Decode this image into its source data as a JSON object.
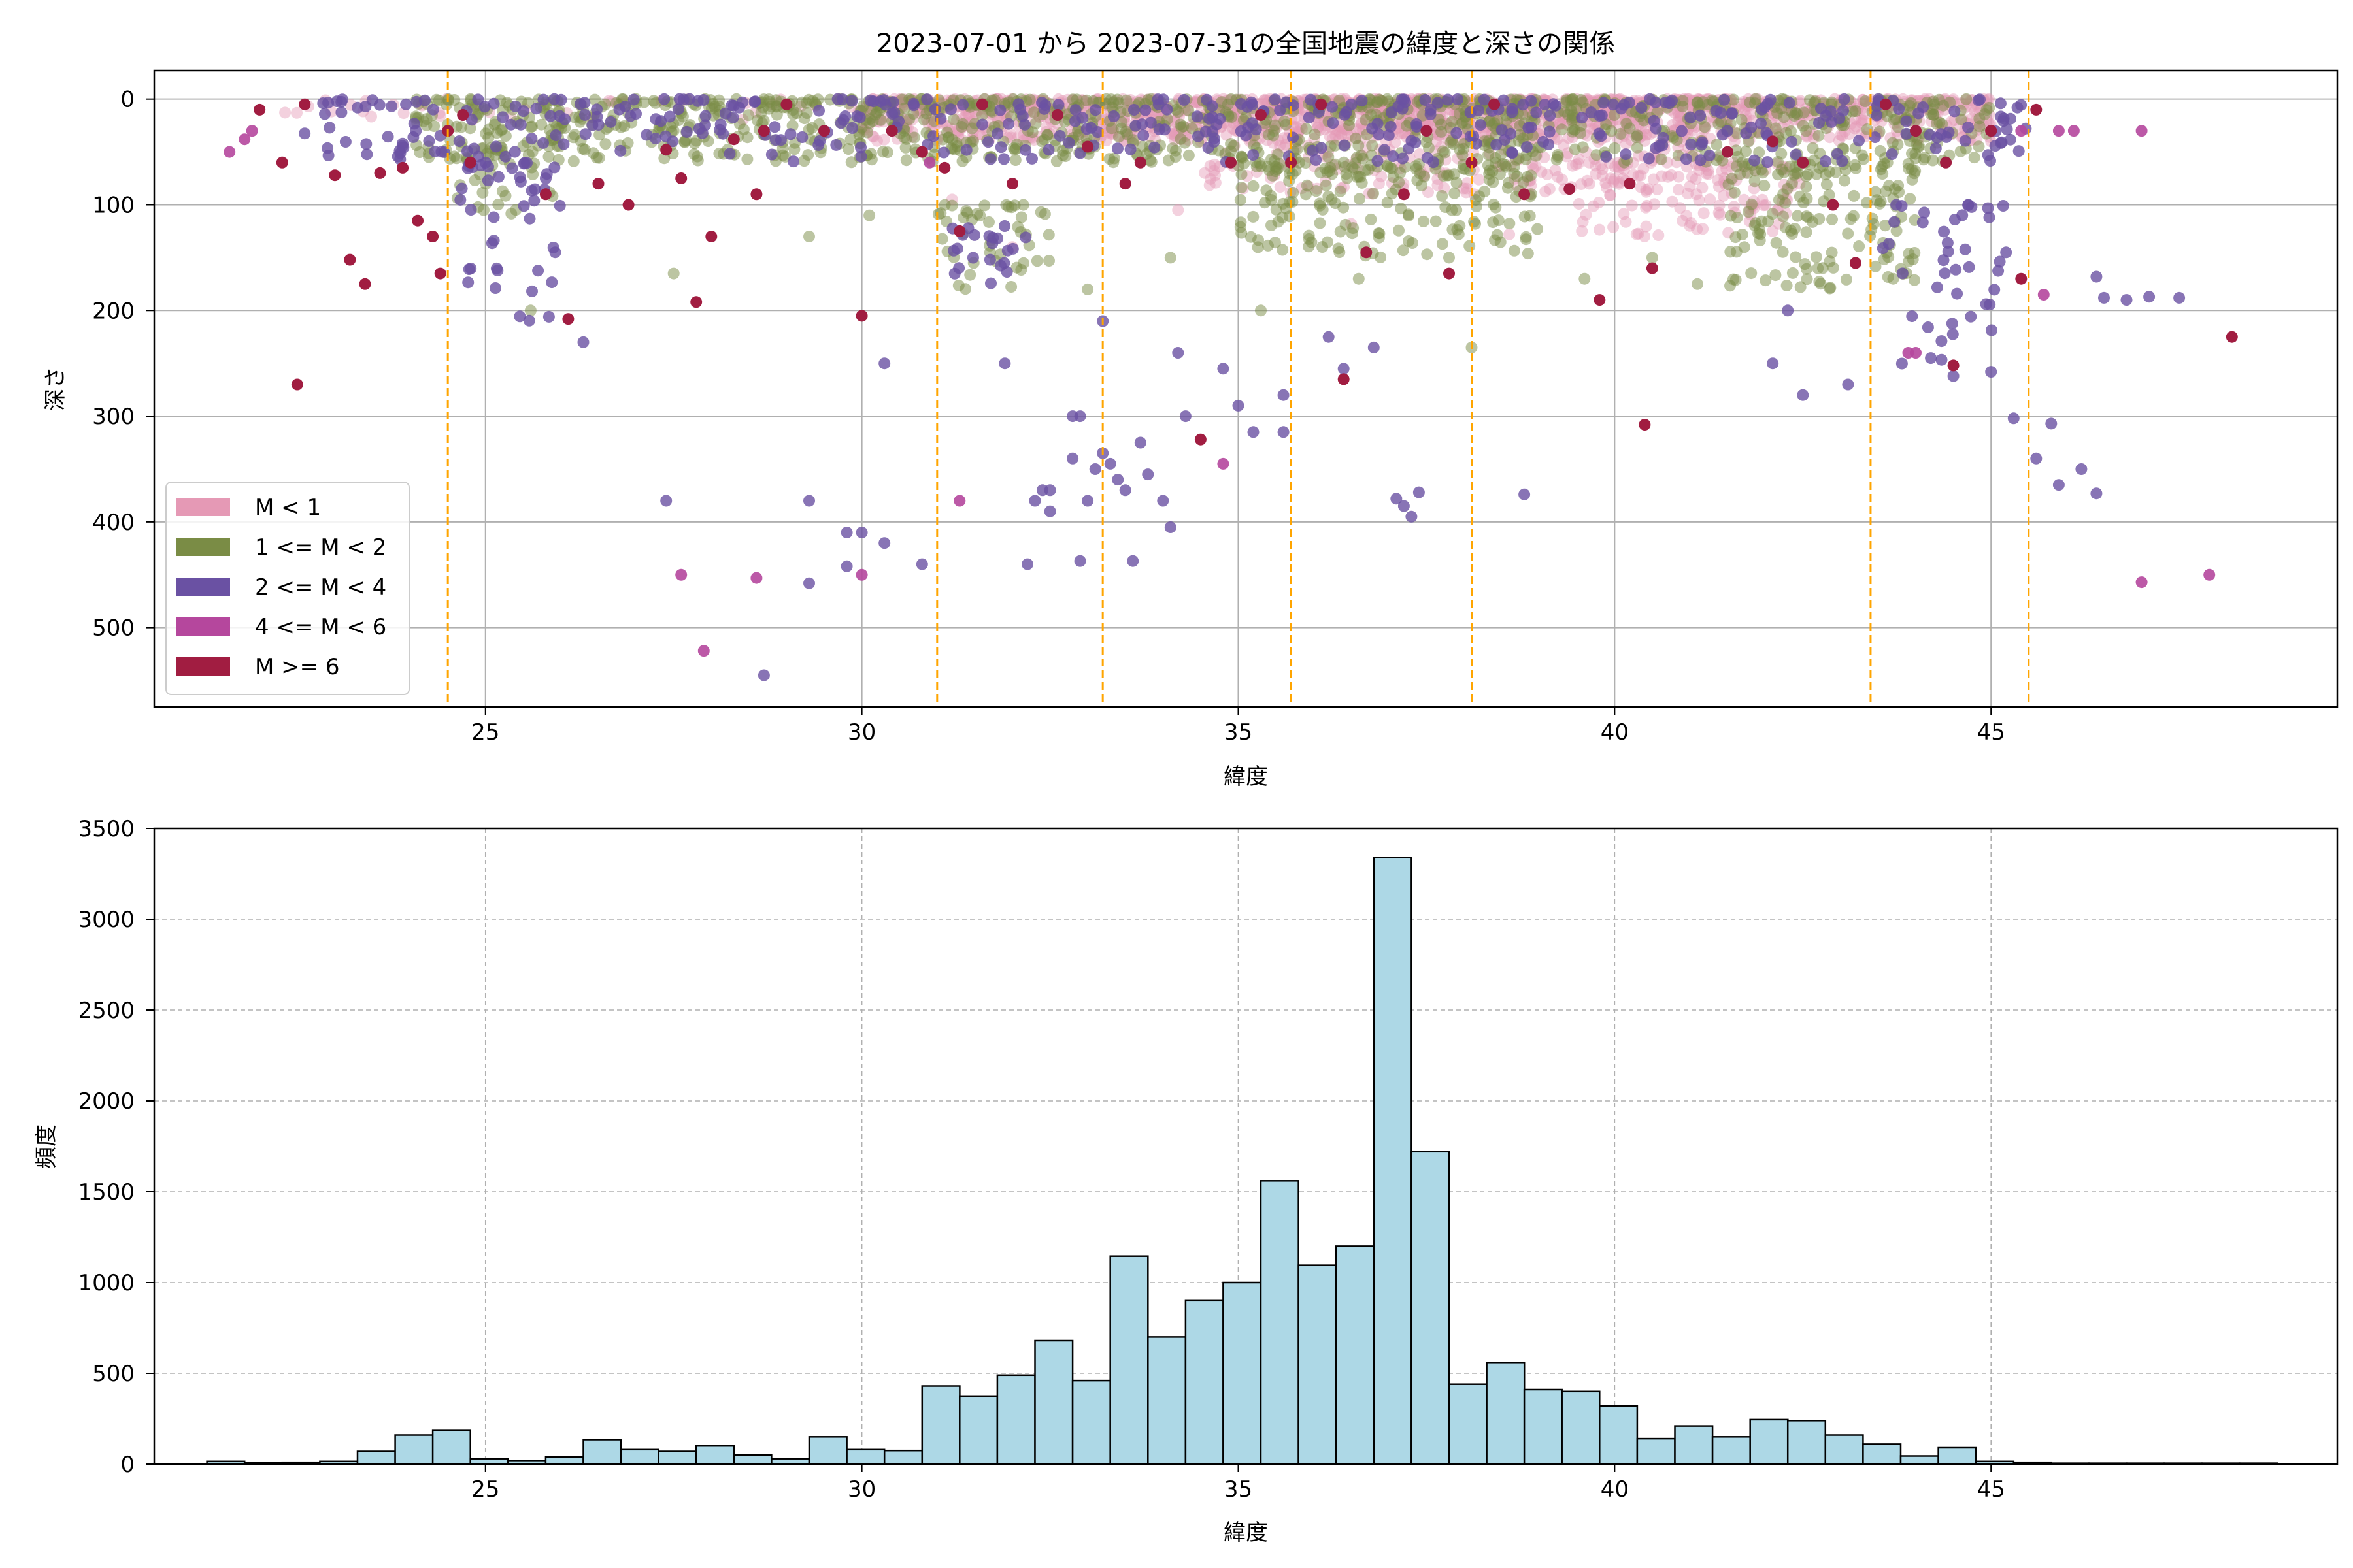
{
  "chart_data": [
    {
      "type": "scatter",
      "title": "2023-07-01 から 2023-07-31の全国地震の緯度と深さの関係",
      "xlabel": "緯度",
      "ylabel": "深さ",
      "xlim": [
        20.6,
        49.6
      ],
      "ylim": [
        575,
        -27
      ],
      "y_inverted": true,
      "xticks": [
        25,
        30,
        35,
        40,
        45
      ],
      "yticks": [
        0,
        100,
        200,
        300,
        400,
        500
      ],
      "grid": true,
      "legend_position": "lower-left",
      "vertical_reference_lines": {
        "x": [
          24.5,
          31.0,
          33.2,
          35.7,
          38.1,
          43.4,
          45.5
        ],
        "color": "#FFA500",
        "style": "dashed"
      },
      "series": [
        {
          "name": "M < 1",
          "color": "#E599B5",
          "alpha": 0.45,
          "clusters": [
            {
              "x": [
                30.0,
                45.0
              ],
              "y": [
                0,
                40
              ],
              "n": 1300
            },
            {
              "x": [
                34.5,
                41.5
              ],
              "y": [
                0,
                90
              ],
              "n": 420
            },
            {
              "x": [
                39.5,
                42.5
              ],
              "y": [
                60,
                130
              ],
              "n": 120
            },
            {
              "x": [
                22.0,
                30.0
              ],
              "y": [
                0,
                20
              ],
              "n": 40
            }
          ],
          "points": [
            [
              31.2,
              95
            ],
            [
              32.0,
              140
            ],
            [
              34.2,
              105
            ],
            [
              36.5,
              118
            ],
            [
              38.6,
              128
            ],
            [
              41.0,
              120
            ],
            [
              42.1,
              125
            ],
            [
              44.0,
              20
            ],
            [
              44.8,
              5
            ]
          ]
        },
        {
          "name": "1 <= M < 2",
          "color": "#7A8C45",
          "alpha": 0.5,
          "clusters": [
            {
              "x": [
                24.0,
                45.0
              ],
              "y": [
                0,
                60
              ],
              "n": 1100
            },
            {
              "x": [
                35.0,
                39.0
              ],
              "y": [
                60,
                150
              ],
              "n": 200
            },
            {
              "x": [
                41.5,
                44.0
              ],
              "y": [
                60,
                180
              ],
              "n": 160
            },
            {
              "x": [
                31.0,
                32.5
              ],
              "y": [
                100,
                180
              ],
              "n": 45
            },
            {
              "x": [
                24.5,
                26.0
              ],
              "y": [
                40,
                110
              ],
              "n": 40
            }
          ],
          "points": [
            [
              25.6,
              200
            ],
            [
              27.5,
              165
            ],
            [
              29.3,
              130
            ],
            [
              30.1,
              110
            ],
            [
              33.0,
              180
            ],
            [
              34.1,
              150
            ],
            [
              35.3,
              200
            ],
            [
              36.6,
              170
            ],
            [
              37.8,
              150
            ],
            [
              38.1,
              235
            ],
            [
              39.6,
              170
            ],
            [
              40.5,
              150
            ],
            [
              41.1,
              175
            ],
            [
              42.7,
              160
            ],
            [
              43.7,
              170
            ]
          ]
        },
        {
          "name": "2 <= M < 4",
          "color": "#6A51A3",
          "alpha": 0.8,
          "clusters": [
            {
              "x": [
                22.5,
                45.5
              ],
              "y": [
                0,
                60
              ],
              "n": 420
            },
            {
              "x": [
                24.5,
                26.0
              ],
              "y": [
                60,
                210
              ],
              "n": 45
            },
            {
              "x": [
                31.2,
                32.2
              ],
              "y": [
                120,
                180
              ],
              "n": 22
            },
            {
              "x": [
                43.5,
                45.2
              ],
              "y": [
                100,
                260
              ],
              "n": 40
            }
          ],
          "points": [
            [
              26.3,
              230
            ],
            [
              27.4,
              380
            ],
            [
              28.7,
              545
            ],
            [
              29.3,
              380
            ],
            [
              29.3,
              458
            ],
            [
              29.8,
              410
            ],
            [
              29.8,
              442
            ],
            [
              30.0,
              410
            ],
            [
              30.3,
              420
            ],
            [
              30.3,
              250
            ],
            [
              30.8,
              440
            ],
            [
              31.9,
              250
            ],
            [
              32.2,
              440
            ],
            [
              32.3,
              380
            ],
            [
              32.4,
              370
            ],
            [
              32.5,
              390
            ],
            [
              32.5,
              370
            ],
            [
              32.8,
              340
            ],
            [
              32.8,
              300
            ],
            [
              32.9,
              300
            ],
            [
              32.9,
              437
            ],
            [
              33.0,
              380
            ],
            [
              33.1,
              350
            ],
            [
              33.2,
              335
            ],
            [
              33.2,
              210
            ],
            [
              33.3,
              345
            ],
            [
              33.4,
              360
            ],
            [
              33.5,
              370
            ],
            [
              33.6,
              437
            ],
            [
              33.7,
              325
            ],
            [
              33.8,
              355
            ],
            [
              34.0,
              380
            ],
            [
              34.1,
              405
            ],
            [
              34.2,
              240
            ],
            [
              34.3,
              300
            ],
            [
              34.8,
              255
            ],
            [
              35.0,
              290
            ],
            [
              35.2,
              315
            ],
            [
              35.6,
              315
            ],
            [
              35.6,
              280
            ],
            [
              36.2,
              225
            ],
            [
              36.4,
              255
            ],
            [
              36.8,
              235
            ],
            [
              37.1,
              378
            ],
            [
              37.2,
              385
            ],
            [
              37.3,
              395
            ],
            [
              37.4,
              372
            ],
            [
              38.8,
              374
            ],
            [
              42.1,
              250
            ],
            [
              42.3,
              200
            ],
            [
              42.5,
              280
            ],
            [
              43.1,
              270
            ],
            [
              44.2,
              245
            ],
            [
              44.5,
              262
            ],
            [
              45.0,
              258
            ],
            [
              45.2,
              145
            ],
            [
              45.3,
              302
            ],
            [
              45.6,
              340
            ],
            [
              45.8,
              307
            ],
            [
              45.9,
              365
            ],
            [
              46.2,
              350
            ],
            [
              46.4,
              168
            ],
            [
              46.4,
              373
            ],
            [
              46.5,
              188
            ],
            [
              46.8,
              190
            ],
            [
              47.1,
              187
            ],
            [
              47.5,
              188
            ]
          ]
        },
        {
          "name": "4 <= M < 6",
          "color": "#B5479D",
          "alpha": 0.9,
          "points": [
            [
              21.6,
              50
            ],
            [
              21.8,
              38
            ],
            [
              27.6,
              450
            ],
            [
              27.9,
              522
            ],
            [
              28.6,
              453
            ],
            [
              30.0,
              450
            ],
            [
              31.3,
              380
            ],
            [
              34.8,
              345
            ],
            [
              43.9,
              240
            ],
            [
              44.0,
              240
            ],
            [
              45.0,
              30
            ],
            [
              45.4,
              30
            ],
            [
              45.7,
              185
            ],
            [
              45.9,
              30
            ],
            [
              46.1,
              30
            ],
            [
              47.0,
              457
            ],
            [
              47.0,
              30
            ],
            [
              47.9,
              450
            ],
            [
              21.9,
              30
            ],
            [
              30.9,
              60
            ]
          ]
        },
        {
          "name": "M >= 6",
          "color": "#A11D41",
          "alpha": 1.0,
          "points": [
            [
              22.0,
              10
            ],
            [
              22.3,
              60
            ],
            [
              22.5,
              270
            ],
            [
              22.6,
              5
            ],
            [
              23.0,
              72
            ],
            [
              23.2,
              152
            ],
            [
              23.4,
              175
            ],
            [
              23.6,
              70
            ],
            [
              23.9,
              65
            ],
            [
              24.1,
              115
            ],
            [
              24.3,
              130
            ],
            [
              24.4,
              165
            ],
            [
              24.5,
              30
            ],
            [
              24.7,
              15
            ],
            [
              24.8,
              60
            ],
            [
              25.8,
              90
            ],
            [
              26.1,
              208
            ],
            [
              26.5,
              80
            ],
            [
              26.9,
              100
            ],
            [
              27.4,
              48
            ],
            [
              27.6,
              75
            ],
            [
              27.8,
              192
            ],
            [
              28.0,
              130
            ],
            [
              28.3,
              38
            ],
            [
              28.6,
              90
            ],
            [
              28.7,
              30
            ],
            [
              29.0,
              5
            ],
            [
              29.5,
              30
            ],
            [
              30.0,
              205
            ],
            [
              30.4,
              30
            ],
            [
              30.8,
              50
            ],
            [
              31.1,
              65
            ],
            [
              31.3,
              125
            ],
            [
              31.6,
              5
            ],
            [
              32.0,
              80
            ],
            [
              32.6,
              15
            ],
            [
              33.0,
              45
            ],
            [
              33.5,
              80
            ],
            [
              33.7,
              60
            ],
            [
              34.5,
              322
            ],
            [
              34.9,
              60
            ],
            [
              35.3,
              15
            ],
            [
              35.7,
              60
            ],
            [
              36.1,
              5
            ],
            [
              36.4,
              265
            ],
            [
              36.7,
              145
            ],
            [
              37.2,
              90
            ],
            [
              37.5,
              30
            ],
            [
              37.8,
              165
            ],
            [
              38.1,
              60
            ],
            [
              38.4,
              5
            ],
            [
              38.8,
              90
            ],
            [
              39.4,
              85
            ],
            [
              39.8,
              190
            ],
            [
              40.2,
              80
            ],
            [
              40.4,
              308
            ],
            [
              40.5,
              160
            ],
            [
              41.5,
              50
            ],
            [
              42.1,
              40
            ],
            [
              42.5,
              60
            ],
            [
              42.9,
              100
            ],
            [
              43.2,
              155
            ],
            [
              43.6,
              5
            ],
            [
              44.0,
              30
            ],
            [
              44.4,
              60
            ],
            [
              44.5,
              252
            ],
            [
              45.0,
              30
            ],
            [
              45.4,
              170
            ],
            [
              45.6,
              10
            ],
            [
              48.2,
              225
            ]
          ]
        }
      ]
    },
    {
      "type": "bar",
      "subtype": "histogram",
      "title": "",
      "xlabel": "緯度",
      "ylabel": "頻度",
      "xlim": [
        20.6,
        49.6
      ],
      "ylim": [
        0,
        3500
      ],
      "xticks": [
        25,
        30,
        35,
        40,
        45
      ],
      "yticks": [
        0,
        500,
        1000,
        1500,
        2000,
        2500,
        3000,
        3500
      ],
      "grid": true,
      "bar_color": "#ADD8E6",
      "edge_color": "#000000",
      "bin_start": 21.3,
      "bin_width": 0.5,
      "values": [
        15,
        8,
        10,
        15,
        70,
        160,
        185,
        30,
        20,
        40,
        135,
        80,
        70,
        100,
        50,
        30,
        150,
        80,
        75,
        430,
        375,
        490,
        680,
        460,
        1145,
        700,
        900,
        1000,
        1560,
        1095,
        1200,
        3340,
        1720,
        440,
        560,
        410,
        400,
        320,
        140,
        210,
        150,
        245,
        240,
        160,
        110,
        45,
        90,
        15,
        10,
        5,
        5,
        5,
        5,
        5,
        5
      ]
    }
  ]
}
